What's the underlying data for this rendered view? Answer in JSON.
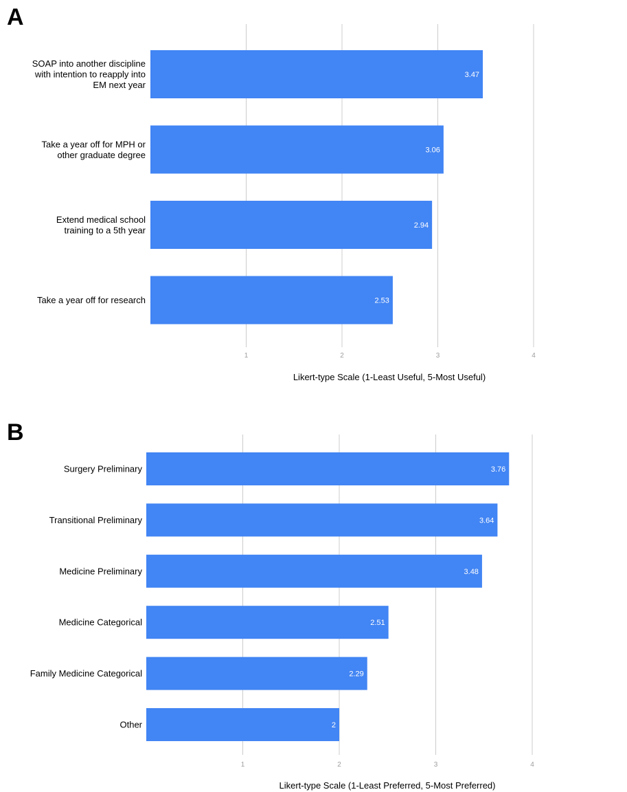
{
  "chart_data": [
    {
      "panel": "A",
      "type": "bar",
      "orientation": "horizontal",
      "categories": [
        [
          "SOAP into another discipline",
          "with intention to reapply into",
          "EM next year"
        ],
        [
          "Take a year off for MPH or",
          "other graduate degree"
        ],
        [
          "Extend medical school",
          "training to a 5th year"
        ],
        [
          "Take a year off for research"
        ]
      ],
      "values": [
        3.47,
        3.06,
        2.94,
        2.53
      ],
      "value_labels": [
        "3.47",
        "3.06",
        "2.94",
        "2.53"
      ],
      "xticks": [
        "1",
        "2",
        "3",
        "4"
      ],
      "xlabel": "Likert-type Scale (1-Least Useful, 5-Most Useful)",
      "xlim": [
        0,
        4.0
      ],
      "grid": true,
      "color": "#4285f4"
    },
    {
      "panel": "B",
      "type": "bar",
      "orientation": "horizontal",
      "categories": [
        [
          "Surgery Preliminary"
        ],
        [
          "Transitional Preliminary"
        ],
        [
          "Medicine Preliminary"
        ],
        [
          "Medicine Categorical"
        ],
        [
          "Family Medicine Categorical"
        ],
        [
          "Other"
        ]
      ],
      "values": [
        3.76,
        3.64,
        3.48,
        2.51,
        2.29,
        2
      ],
      "value_labels": [
        "3.76",
        "3.64",
        "3.48",
        "2.51",
        "2.29",
        "2"
      ],
      "xticks": [
        "1",
        "2",
        "3",
        "4"
      ],
      "xlabel": "Likert-type Scale (1-Least Preferred, 5-Most Preferred)",
      "xlim": [
        0,
        4.0
      ],
      "grid": true,
      "color": "#4285f4"
    }
  ]
}
